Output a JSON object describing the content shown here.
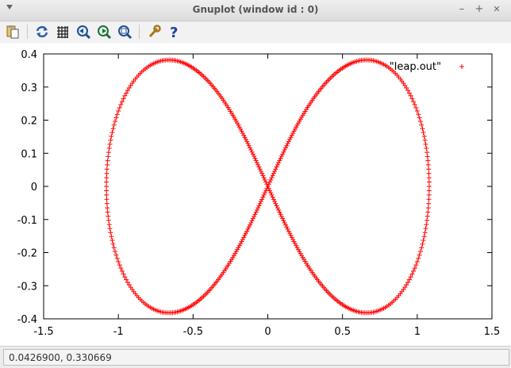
{
  "window": {
    "title": "Gnuplot (window id : 0)",
    "controls": {
      "minimize": "–",
      "maximize": "+",
      "close": "✕"
    }
  },
  "toolbar": {
    "buttons": [
      {
        "name": "copy-clipboard-icon"
      },
      {
        "name": "replot-icon"
      },
      {
        "name": "grid-icon"
      },
      {
        "name": "zoom-previous-icon"
      },
      {
        "name": "zoom-next-icon"
      },
      {
        "name": "autoscale-icon"
      },
      {
        "name": "settings-icon"
      },
      {
        "name": "help-icon"
      }
    ]
  },
  "chart_data": {
    "type": "scatter",
    "xlim": [
      -1.5,
      1.5
    ],
    "ylim": [
      -0.4,
      0.4
    ],
    "xticks": [
      "-1.5",
      "-1",
      "-0.5",
      "0",
      "0.5",
      "1",
      "1.5"
    ],
    "yticks": [
      "0.4",
      "0.3",
      "0.2",
      "0.1",
      "0",
      "-0.1",
      "-0.2",
      "-0.3",
      "-0.4"
    ],
    "grid": false,
    "legend": "top-right",
    "series": [
      {
        "name": "\"leap.out\"",
        "marker": "+",
        "color": "#ff0000",
        "curve": "lemniscate",
        "a": 1.08
      }
    ]
  },
  "status": {
    "text": "0.0426900,  0.330669"
  }
}
